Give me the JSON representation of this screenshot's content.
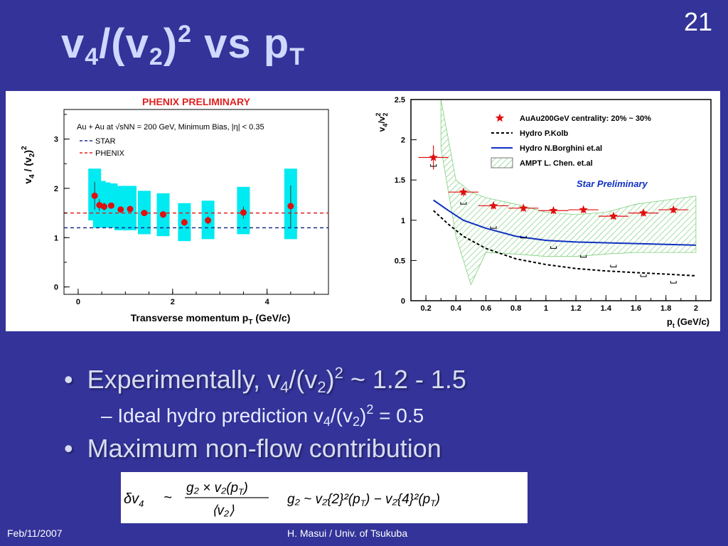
{
  "slide": {
    "number": "21",
    "title": {
      "base": "v",
      "sub1": "4",
      "mid": "/(v",
      "sub2": "2",
      "close": ")",
      "sup": "2",
      "rest": " vs p",
      "sub3": "T"
    },
    "footer_left": "Feb/11/2007",
    "footer_center": "H. Masui / Univ. of Tsukuba"
  },
  "bullets": {
    "b1": {
      "bullet": "•",
      "text": "Experimentally, v",
      "sub1": "4",
      "mid": "/(v",
      "sub2": "2",
      "close": ")",
      "sup": "2",
      "rest": " ~ 1.2 - 1.5"
    },
    "b2": {
      "dash": "–",
      "text": "Ideal hydro prediction v",
      "sub1": "4",
      "mid": "/(v",
      "sub2": "2",
      "close": ")",
      "sup": "2",
      "rest": " = 0.5"
    },
    "b3": {
      "bullet": "•",
      "text": "Maximum non-flow contribution"
    }
  },
  "formula": {
    "lhs": "δv",
    "lhs_sub": "4",
    "tilde": "~",
    "numerator": "g₂ × v₂(p",
    "numerator_sub": "T",
    "numerator_close": ")",
    "denominator": "⟨v₂⟩",
    "rhs": "g₂ ~ v₂{2}²(p",
    "rhs_mid": ") − v₂{4}²(p",
    "rhs_close": ")"
  },
  "chart_data": [
    {
      "type": "scatter",
      "title": "PHENIX PRELIMINARY",
      "xlabel": "Transverse momentum p",
      "xlabel_sub": "T",
      "xlabel_unit": " (GeV/c)",
      "ylabel": "v4 / (v2)2",
      "xlim": [
        -0.3,
        5.3
      ],
      "ylim": [
        -0.15,
        3.6
      ],
      "x_ticks": [
        0,
        2,
        4
      ],
      "y_ticks": [
        0,
        1,
        2,
        3
      ],
      "annotation": "Au + Au at √sNN = 200 GeV, Minimum Bias, |η| < 0.35",
      "legend": [
        {
          "label": "STAR",
          "color": "#1f2d8a",
          "y": 1.2
        },
        {
          "label": "PHENIX",
          "color": "#e02020",
          "y": 1.5
        }
      ],
      "series": [
        {
          "color": "#e01010",
          "points": [
            {
              "x": 0.35,
              "y": 1.85,
              "err": 0.28,
              "sys": [
                1.35,
                2.4
              ]
            },
            {
              "x": 0.45,
              "y": 1.66,
              "err": 0.12,
              "sys": [
                1.2,
                2.15
              ]
            },
            {
              "x": 0.55,
              "y": 1.63,
              "err": 0.08,
              "sys": [
                1.22,
                2.12
              ]
            },
            {
              "x": 0.7,
              "y": 1.65,
              "err": 0.06,
              "sys": [
                1.2,
                2.1
              ]
            },
            {
              "x": 0.9,
              "y": 1.57,
              "err": 0.06,
              "sys": [
                1.15,
                2.05
              ]
            },
            {
              "x": 1.1,
              "y": 1.58,
              "err": 0.06,
              "sys": [
                1.15,
                2.05
              ]
            },
            {
              "x": 1.4,
              "y": 1.5,
              "err": 0.06,
              "sys": [
                1.07,
                1.95
              ]
            },
            {
              "x": 1.8,
              "y": 1.47,
              "err": 0.07,
              "sys": [
                1.03,
                1.9
              ]
            },
            {
              "x": 2.25,
              "y": 1.31,
              "err": 0.07,
              "sys": [
                0.93,
                1.7
              ]
            },
            {
              "x": 2.75,
              "y": 1.35,
              "err": 0.08,
              "sys": [
                0.97,
                1.75
              ]
            },
            {
              "x": 3.5,
              "y": 1.51,
              "err": 0.12,
              "sys": [
                1.07,
                2.03
              ]
            },
            {
              "x": 4.5,
              "y": 1.64,
              "err": 0.42,
              "sys": [
                0.97,
                2.4
              ]
            }
          ]
        }
      ]
    },
    {
      "type": "scatter",
      "title": "",
      "ylabel": "v4/v2²",
      "xlabel": "p",
      "xlabel_sub": "t",
      "xlabel_unit": " (GeV/c)",
      "xlim": [
        0.1,
        2.1
      ],
      "ylim": [
        0,
        2.5
      ],
      "x_ticks": [
        "0.2",
        "0.4",
        "0.6",
        "0.8",
        "1",
        "1.2",
        "1.4",
        "1.6",
        "1.8",
        "2"
      ],
      "y_ticks": [
        "0",
        "0.5",
        "1",
        "1.5",
        "2",
        "2.5"
      ],
      "annotation": "Star Preliminary",
      "legend": [
        {
          "label": "AuAu200GeV centrality: 20% ~ 30%",
          "kind": "star",
          "color": "#e01010"
        },
        {
          "label": "Hydro P.Kolb",
          "kind": "dashed",
          "color": "#000000"
        },
        {
          "label": "Hydro N.Borghini et.al",
          "kind": "line",
          "color": "#1030c0"
        },
        {
          "label": "AMPT L. Chen. et.al",
          "kind": "band",
          "color": "#7ccf7c"
        }
      ],
      "series": [
        {
          "name": "AuAu200GeV centrality: 20% ~ 30%",
          "x": [
            0.25,
            0.45,
            0.65,
            0.85,
            1.05,
            1.25,
            1.45,
            1.65,
            1.85
          ],
          "y": [
            1.78,
            1.35,
            1.18,
            1.15,
            1.12,
            1.13,
            1.05,
            1.09,
            1.13
          ],
          "xerr": [
            0.1,
            0.1,
            0.1,
            0.1,
            0.1,
            0.1,
            0.1,
            0.1,
            0.1
          ],
          "yerr": [
            0.15,
            0.05,
            0.04,
            0.04,
            0.04,
            0.04,
            0.04,
            0.04,
            0.04
          ],
          "sys": [
            1.67,
            1.2,
            0.9,
            0.78,
            0.65,
            0.54,
            0.42,
            0.3,
            0.22
          ]
        },
        {
          "name": "Hydro P.Kolb",
          "x": [
            0.25,
            0.35,
            0.45,
            0.6,
            0.8,
            1.0,
            1.2,
            1.4,
            1.6,
            1.8,
            2.0
          ],
          "y": [
            1.12,
            0.95,
            0.8,
            0.65,
            0.52,
            0.45,
            0.4,
            0.37,
            0.35,
            0.33,
            0.31
          ]
        },
        {
          "name": "Hydro N.Borghini et.al",
          "x": [
            0.25,
            0.35,
            0.45,
            0.6,
            0.8,
            1.0,
            1.2,
            1.4,
            1.6,
            1.8,
            2.0
          ],
          "y": [
            1.25,
            1.12,
            1.0,
            0.9,
            0.8,
            0.75,
            0.73,
            0.72,
            0.71,
            0.7,
            0.69
          ]
        },
        {
          "name": "AMPT L. Chen. et.al",
          "x": [
            0.3,
            0.4,
            0.5,
            0.6,
            0.8,
            1.0,
            1.2,
            1.4,
            1.6,
            1.8,
            2.0
          ],
          "upper": [
            2.5,
            1.5,
            1.35,
            1.28,
            1.2,
            1.1,
            1.07,
            1.1,
            1.2,
            1.25,
            1.3
          ],
          "lower": [
            1.9,
            0.8,
            0.2,
            0.6,
            0.58,
            0.55,
            0.55,
            0.58,
            0.6,
            0.6,
            0.6
          ]
        }
      ]
    }
  ]
}
